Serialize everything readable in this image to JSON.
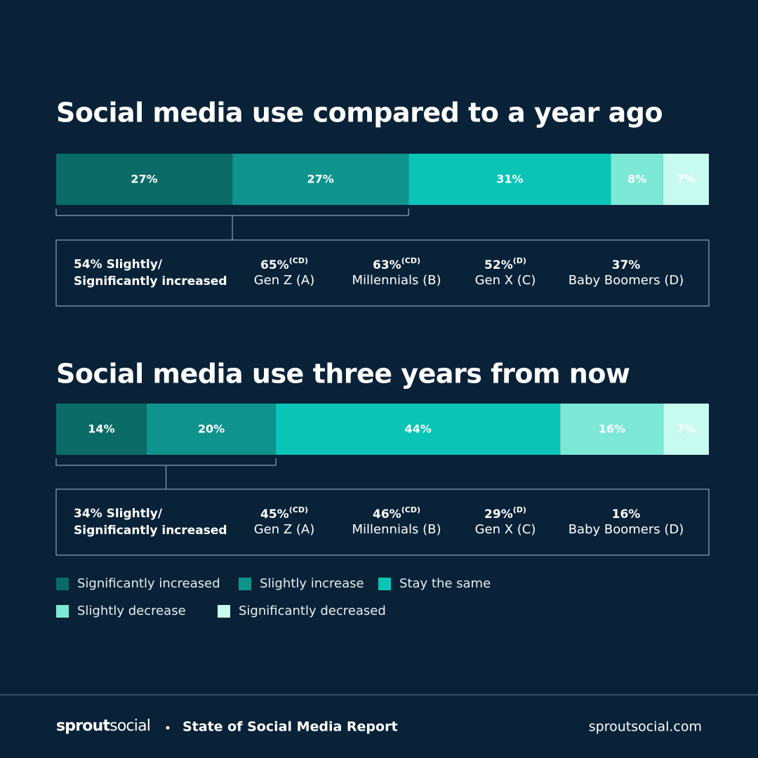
{
  "chart_data": [
    {
      "type": "bar",
      "orientation": "horizontal",
      "stacked": true,
      "title": "Social media use compared to a year ago",
      "values": [
        27,
        27,
        31,
        8,
        7
      ],
      "value_labels": [
        "27%",
        "27%",
        "31%",
        "8%",
        "7%"
      ],
      "summary": {
        "lead": [
          "54% Slightly/",
          "Significantly increased"
        ],
        "groups": [
          {
            "value": "65%",
            "note": "(CD)",
            "label": "Gen Z (A)"
          },
          {
            "value": "63%",
            "note": "(CD)",
            "label": "Millennials (B)"
          },
          {
            "value": "52%",
            "note": "(D)",
            "label": "Gen X (C)"
          },
          {
            "value": "37%",
            "label": "Baby Boomers (D)"
          }
        ]
      }
    },
    {
      "type": "bar",
      "orientation": "horizontal",
      "stacked": true,
      "title": "Social media use three years from now",
      "values": [
        14,
        20,
        44,
        16,
        7
      ],
      "value_labels": [
        "14%",
        "20%",
        "44%",
        "16%",
        "7%"
      ],
      "summary": {
        "lead": [
          "34% Slightly/",
          "Significantly increased"
        ],
        "groups": [
          {
            "value": "45%",
            "note": "(CD)",
            "label": "Gen Z (A)"
          },
          {
            "value": "46%",
            "note": "(CD)",
            "label": "Millennials (B)"
          },
          {
            "value": "29%",
            "note": "(D)",
            "label": "Gen X (C)"
          },
          {
            "value": "16%",
            "label": "Baby Boomers (D)"
          }
        ]
      }
    }
  ],
  "legend": {
    "entries": [
      {
        "label": "Significantly increased",
        "color": "#0b6b66"
      },
      {
        "label": "Slightly increase",
        "color": "#0e948d"
      },
      {
        "label": "Stay the same",
        "color": "#0ac5b5"
      },
      {
        "label": "Slightly decrease",
        "color": "#7de8d6"
      },
      {
        "label": "Significantly decreased",
        "color": "#c8fbef"
      }
    ]
  },
  "footer": {
    "brand": [
      "sprout",
      "social"
    ],
    "report": "State of Social Media Report",
    "site": "sproutsocial.com"
  }
}
